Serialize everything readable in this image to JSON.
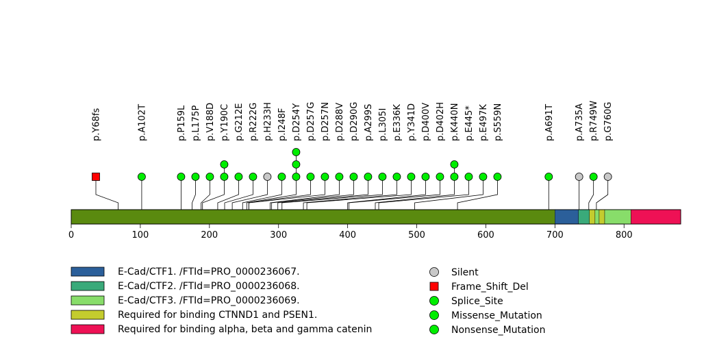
{
  "chart_data": {
    "type": "lollipop",
    "title": "",
    "xlabel": "",
    "ylabel": "",
    "protein_length": 882,
    "xlim": [
      0,
      882
    ],
    "xticks": [
      0,
      100,
      200,
      300,
      400,
      500,
      600,
      700,
      800
    ],
    "xtick_labels": [
      "0",
      "100",
      "200",
      "300",
      "400",
      "500",
      "600",
      "700",
      "800"
    ],
    "domains": [
      {
        "name": "E-Cad/CTF1. /FTId=PRO_0000236067.",
        "start": 700,
        "end": 734,
        "color": "#2b5f9a"
      },
      {
        "name": "E-Cad/CTF2. /FTId=PRO_0000236068.",
        "start": 734,
        "end": 750,
        "color": "#3aaa7a"
      },
      {
        "name": "Required for binding CTNND1 and PSEN1.",
        "start": 750,
        "end": 758,
        "color": "#c4cc2e"
      },
      {
        "name": "E-Cad/CTF3. /FTId=PRO_0000236069.",
        "start": 758,
        "end": 764,
        "color": "#88dd6a"
      },
      {
        "name": "Required for binding CTNND1 and PSEN1.",
        "start": 764,
        "end": 772,
        "color": "#c4cc2e"
      },
      {
        "name": "E-Cad/CTF3. /FTId=PRO_0000236069.",
        "start": 772,
        "end": 810,
        "color": "#88dd6a"
      },
      {
        "name": "Required for binding alpha, beta and gamma catenin",
        "start": 810,
        "end": 882,
        "color": "#ee1155"
      }
    ],
    "backbone_color": "#5a8a0f",
    "mutations": [
      {
        "label": "p.Y68fs",
        "pos": 68,
        "count": 1,
        "type": "Frame_Shift_Del"
      },
      {
        "label": "p.A102T",
        "pos": 102,
        "count": 1,
        "type": "Missense_Mutation"
      },
      {
        "label": "p.P159L",
        "pos": 159,
        "count": 1,
        "type": "Missense_Mutation"
      },
      {
        "label": "p.L175P",
        "pos": 175,
        "count": 1,
        "type": "Missense_Mutation"
      },
      {
        "label": "p.V188D",
        "pos": 188,
        "count": 1,
        "type": "Missense_Mutation"
      },
      {
        "label": "p.Y190C",
        "pos": 190,
        "count": 2,
        "type": "Missense_Mutation"
      },
      {
        "label": "p.G212E",
        "pos": 212,
        "count": 1,
        "type": "Missense_Mutation"
      },
      {
        "label": "p.R222G",
        "pos": 222,
        "count": 1,
        "type": "Missense_Mutation"
      },
      {
        "label": "p.H233H",
        "pos": 233,
        "count": 1,
        "type": "Silent"
      },
      {
        "label": "p.I248F",
        "pos": 248,
        "count": 1,
        "type": "Missense_Mutation"
      },
      {
        "label": "p.D254Y",
        "pos": 254,
        "count": 3,
        "type": "Missense_Mutation"
      },
      {
        "label": "p.D257G",
        "pos": 257,
        "count": 1,
        "type": "Missense_Mutation"
      },
      {
        "label": "p.D257N",
        "pos": 257,
        "count": 1,
        "type": "Missense_Mutation"
      },
      {
        "label": "p.D288V",
        "pos": 288,
        "count": 1,
        "type": "Missense_Mutation"
      },
      {
        "label": "p.D290G",
        "pos": 290,
        "count": 1,
        "type": "Missense_Mutation"
      },
      {
        "label": "p.A299S",
        "pos": 299,
        "count": 1,
        "type": "Missense_Mutation"
      },
      {
        "label": "p.L305I",
        "pos": 305,
        "count": 1,
        "type": "Missense_Mutation"
      },
      {
        "label": "p.E336K",
        "pos": 336,
        "count": 1,
        "type": "Missense_Mutation"
      },
      {
        "label": "p.Y341D",
        "pos": 341,
        "count": 1,
        "type": "Missense_Mutation"
      },
      {
        "label": "p.D400V",
        "pos": 400,
        "count": 1,
        "type": "Missense_Mutation"
      },
      {
        "label": "p.D402H",
        "pos": 402,
        "count": 1,
        "type": "Missense_Mutation"
      },
      {
        "label": "p.K440N",
        "pos": 440,
        "count": 2,
        "type": "Missense_Mutation"
      },
      {
        "label": "p.E445*",
        "pos": 445,
        "count": 1,
        "type": "Nonsense_Mutation"
      },
      {
        "label": "p.E497K",
        "pos": 497,
        "count": 1,
        "type": "Missense_Mutation"
      },
      {
        "label": "p.S559N",
        "pos": 559,
        "count": 1,
        "type": "Missense_Mutation"
      },
      {
        "label": "p.A691T",
        "pos": 691,
        "count": 1,
        "type": "Missense_Mutation"
      },
      {
        "label": "p.A735A",
        "pos": 735,
        "count": 1,
        "type": "Silent"
      },
      {
        "label": "p.R749W",
        "pos": 749,
        "count": 1,
        "type": "Missense_Mutation"
      },
      {
        "label": "p.G760G",
        "pos": 760,
        "count": 1,
        "type": "Silent"
      }
    ],
    "domain_legend": [
      {
        "name": "E-Cad/CTF1. /FTId=PRO_0000236067.",
        "color": "#2b5f9a"
      },
      {
        "name": "E-Cad/CTF2. /FTId=PRO_0000236068.",
        "color": "#3aaa7a"
      },
      {
        "name": "E-Cad/CTF3. /FTId=PRO_0000236069.",
        "color": "#88dd6a"
      },
      {
        "name": "Required for binding CTNND1 and PSEN1.",
        "color": "#c4cc2e"
      },
      {
        "name": "Required for binding alpha, beta and gamma catenin",
        "color": "#ee1155"
      }
    ],
    "mutation_legend": [
      {
        "name": "Silent",
        "shape": "circle",
        "color": "#c8c8c8"
      },
      {
        "name": "Frame_Shift_Del",
        "shape": "square",
        "color": "#ff0000"
      },
      {
        "name": "Splice_Site",
        "shape": "circle",
        "color": "#00ee00"
      },
      {
        "name": "Missense_Mutation",
        "shape": "circle",
        "color": "#00ee00"
      },
      {
        "name": "Nonsense_Mutation",
        "shape": "circle",
        "color": "#00ee00"
      }
    ],
    "mutation_colors": {
      "Silent": "#c8c8c8",
      "Frame_Shift_Del": "#ff0000",
      "Splice_Site": "#00ee00",
      "Missense_Mutation": "#00ee00",
      "Nonsense_Mutation": "#00ee00"
    },
    "legend_placement": "bottom",
    "grid": false
  }
}
